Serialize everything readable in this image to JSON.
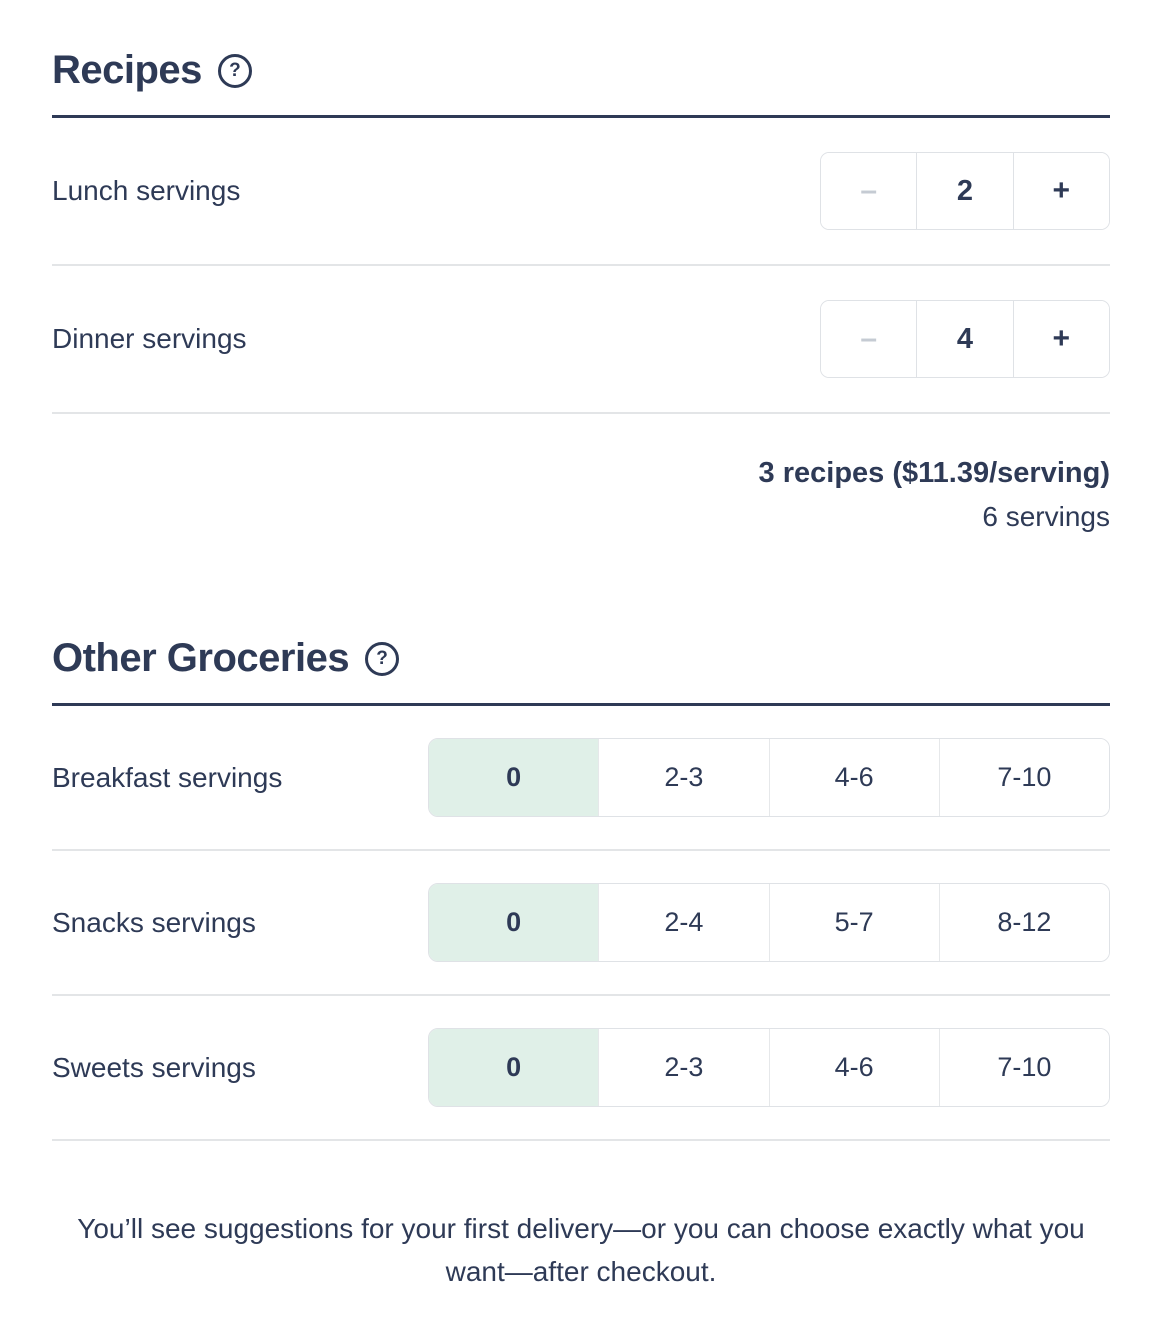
{
  "colors": {
    "text_navy": "#2e3a56",
    "selected_mint": "#e0f0e8",
    "control_border": "#dfe2e6",
    "row_divider": "#e3e5e7",
    "minus_disabled": "#c5cbd3"
  },
  "icons": {
    "help_glyph": "?",
    "minus_glyph": "–",
    "plus_glyph": "+"
  },
  "recipes_section": {
    "title": "Recipes",
    "rows": [
      {
        "label": "Lunch servings",
        "value": "2"
      },
      {
        "label": "Dinner servings",
        "value": "4"
      }
    ],
    "summary_line1": "3 recipes ($11.39/serving)",
    "summary_line2": "6 servings"
  },
  "groceries_section": {
    "title": "Other Groceries",
    "rows": [
      {
        "label": "Breakfast servings",
        "selected_index": 0,
        "options": [
          "0",
          "2-3",
          "4-6",
          "7-10"
        ]
      },
      {
        "label": "Snacks servings",
        "selected_index": 0,
        "options": [
          "0",
          "2-4",
          "5-7",
          "8-12"
        ]
      },
      {
        "label": "Sweets servings",
        "selected_index": 0,
        "options": [
          "0",
          "2-3",
          "4-6",
          "7-10"
        ]
      }
    ]
  },
  "footer": {
    "text": "You’ll see suggestions for your first delivery—or you can choose exactly what you want—after checkout."
  }
}
